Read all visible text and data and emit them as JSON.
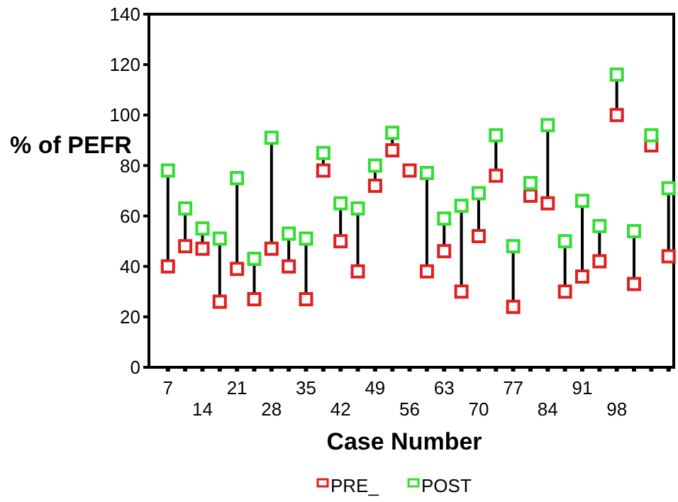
{
  "chart_data": {
    "type": "scatter",
    "xlabel": "Case Number",
    "ylabel": "% of PEFR",
    "categories": [
      "7",
      null,
      "14",
      null,
      "21",
      null,
      "28",
      null,
      "35",
      null,
      "42",
      null,
      "49",
      null,
      "56",
      null,
      "63",
      null,
      "70",
      null,
      "77",
      null,
      "84",
      null,
      "91",
      null,
      "98",
      null,
      null,
      null
    ],
    "series": [
      {
        "name": "PRE_",
        "color": "#e02020",
        "values": [
          40,
          48,
          47,
          26,
          39,
          27,
          47,
          40,
          27,
          78,
          50,
          38,
          72,
          86,
          78,
          38,
          46,
          30,
          52,
          76,
          24,
          68,
          65,
          30,
          36,
          42,
          100,
          33,
          88,
          44
        ]
      },
      {
        "name": "POST",
        "color": "#33dd33",
        "values": [
          78,
          63,
          55,
          51,
          75,
          43,
          91,
          53,
          51,
          85,
          65,
          63,
          80,
          93,
          null,
          77,
          59,
          64,
          69,
          92,
          48,
          73,
          96,
          50,
          66,
          56,
          116,
          54,
          92,
          71
        ]
      }
    ],
    "ylim": [
      0,
      140
    ],
    "yticks": [
      0,
      20,
      40,
      60,
      80,
      100,
      120,
      140
    ],
    "marker": "square",
    "legend": "bottom",
    "grid": false
  }
}
